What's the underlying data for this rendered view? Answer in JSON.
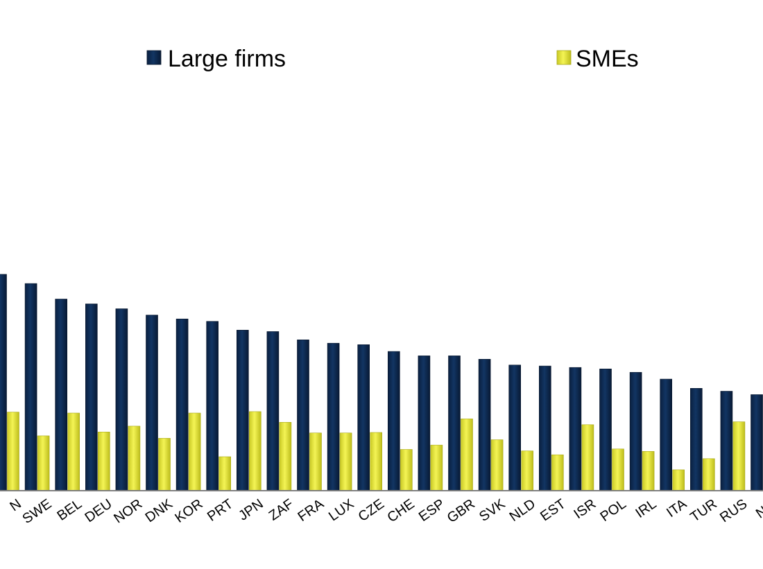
{
  "chart_data": {
    "type": "bar",
    "title": "",
    "xlabel": "",
    "ylabel": "",
    "ylim": [
      0,
      70
    ],
    "grid": false,
    "legend_position": "top",
    "categories": [
      "FIN",
      "SWE",
      "BEL",
      "DEU",
      "NOR",
      "DNK",
      "KOR",
      "PRT",
      "JPN",
      "ZAF",
      "FRA",
      "LUX",
      "CZE",
      "CHE",
      "ESP",
      "GBR",
      "SVK",
      "NLD",
      "EST",
      "ISR",
      "POL",
      "IRL",
      "ITA",
      "TUR",
      "RUS",
      "NZL"
    ],
    "visible_tick_labels": [
      "N",
      "SWE",
      "BEL",
      "DEU",
      "NOR",
      "DNK",
      "KOR",
      "PRT",
      "JPN",
      "ZAF",
      "FRA",
      "LUX",
      "CZE",
      "CHE",
      "ESP",
      "GBR",
      "SVK",
      "NLD",
      "EST",
      "ISR",
      "POL",
      "IRL",
      "ITA",
      "TUR",
      "RUS",
      "NZI"
    ],
    "series": [
      {
        "name": "Large firms",
        "color": "#0d2b52",
        "values": [
          44.6,
          42.7,
          39.5,
          38.5,
          37.5,
          36.2,
          35.4,
          34.9,
          33.1,
          32.8,
          31.1,
          30.4,
          30.1,
          28.7,
          27.8,
          27.8,
          27.1,
          25.9,
          25.7,
          25.4,
          25.1,
          24.4,
          23.0,
          21.1,
          20.5,
          19.8
        ]
      },
      {
        "name": "SMEs",
        "color": "#e4e431",
        "values": [
          16.2,
          11.3,
          16.0,
          12.1,
          13.3,
          10.8,
          16.0,
          7.0,
          16.3,
          14.1,
          11.9,
          11.9,
          12.0,
          8.5,
          9.4,
          14.8,
          10.5,
          8.2,
          7.4,
          13.6,
          8.6,
          8.1,
          4.3,
          6.6,
          14.2,
          12.0
        ]
      }
    ]
  }
}
